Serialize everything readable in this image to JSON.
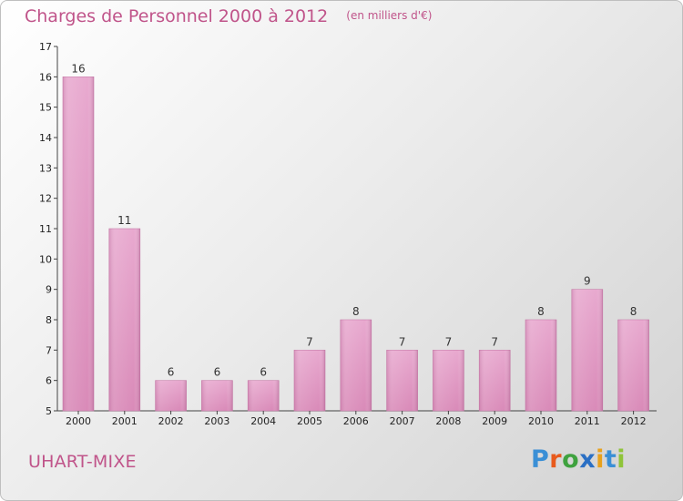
{
  "header": {
    "title": "Charges de Personnel 2000 à 2012",
    "unit": "(en milliers d'€)"
  },
  "footer": {
    "commune": "UHART-MIXE",
    "logo": [
      "P",
      "r",
      "o",
      "x",
      "i",
      "t",
      "i"
    ]
  },
  "chart_data": {
    "type": "bar",
    "title": "Charges de Personnel 2000 à 2012",
    "categories": [
      "2000",
      "2001",
      "2002",
      "2003",
      "2004",
      "2005",
      "2006",
      "2007",
      "2008",
      "2009",
      "2010",
      "2011",
      "2012"
    ],
    "values": [
      16,
      11,
      6,
      6,
      6,
      7,
      8,
      7,
      7,
      7,
      8,
      9,
      8
    ],
    "ylim": [
      5,
      17
    ],
    "yticks": [
      5,
      6,
      7,
      8,
      9,
      10,
      11,
      12,
      13,
      14,
      15,
      16,
      17
    ],
    "bar_color": "#d98ab8",
    "grid": false
  }
}
